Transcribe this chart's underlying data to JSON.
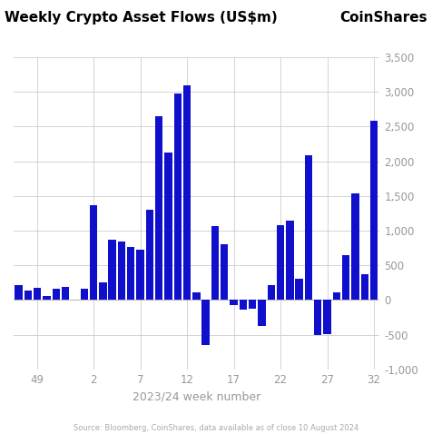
{
  "title": "Weekly Crypto Asset Flows (US$m)",
  "coinshares_label": "CoinShares",
  "xlabel": "2023/24 week number",
  "source_text": "Source: Bloomberg, CoinShares, data available as of close 10 August 2024",
  "ylim": [
    -1000,
    3500
  ],
  "yticks": [
    -1000,
    -500,
    0,
    500,
    1000,
    1500,
    2000,
    2500,
    3000,
    3500
  ],
  "xtick_labels": [
    49,
    2,
    7,
    12,
    17,
    22,
    27,
    32
  ],
  "bar_color": "#1010cc",
  "background_color": "#ffffff",
  "weeks": [
    47,
    48,
    49,
    50,
    51,
    52,
    1,
    2,
    3,
    4,
    5,
    6,
    7,
    8,
    9,
    10,
    11,
    12,
    13,
    14,
    15,
    16,
    17,
    18,
    19,
    20,
    21,
    22,
    23,
    24,
    25,
    26,
    27,
    28,
    29,
    30,
    31,
    32
  ],
  "values": [
    210,
    140,
    170,
    55,
    160,
    185,
    165,
    1370,
    260,
    870,
    840,
    760,
    720,
    1300,
    2650,
    2130,
    2980,
    3100,
    110,
    -650,
    1060,
    800,
    -75,
    -135,
    -130,
    -370,
    215,
    1080,
    1140,
    310,
    2080,
    -510,
    -490,
    110,
    640,
    1540,
    370,
    2580
  ]
}
